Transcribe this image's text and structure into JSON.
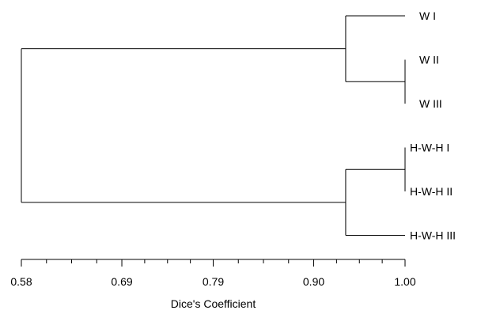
{
  "dendrogram": {
    "leaves": [
      {
        "id": "w1",
        "label": "W I"
      },
      {
        "id": "w2",
        "label": "W II"
      },
      {
        "id": "w3",
        "label": "W III"
      },
      {
        "id": "h1",
        "label": "H-W-H I"
      },
      {
        "id": "h2",
        "label": "H-W-H II"
      },
      {
        "id": "h3",
        "label": "H-W-H III"
      }
    ],
    "merges": [
      {
        "id": "m_w2w3",
        "children": [
          "w2",
          "w3"
        ],
        "similarity": 1.0
      },
      {
        "id": "m_h1h2",
        "children": [
          "h1",
          "h2"
        ],
        "similarity": 1.0
      },
      {
        "id": "m_w",
        "children": [
          "w1",
          "m_w2w3"
        ],
        "similarity": 0.935
      },
      {
        "id": "m_h",
        "children": [
          "m_h1h2",
          "h3"
        ],
        "similarity": 0.935
      },
      {
        "id": "root",
        "children": [
          "m_w",
          "m_h"
        ],
        "similarity": 0.58
      }
    ],
    "orientation": "right-to-left"
  },
  "axis": {
    "title": "Dice's Coefficient",
    "min": 0.58,
    "max": 1.0,
    "tick_labels": [
      "0.58",
      "0.69",
      "0.79",
      "0.90",
      "1.00"
    ],
    "tick_values": [
      0.58,
      0.69,
      0.79,
      0.9,
      1.0
    ],
    "minor_per_interval": 4
  },
  "colors": {
    "line": "#000000",
    "background": "#ffffff"
  }
}
